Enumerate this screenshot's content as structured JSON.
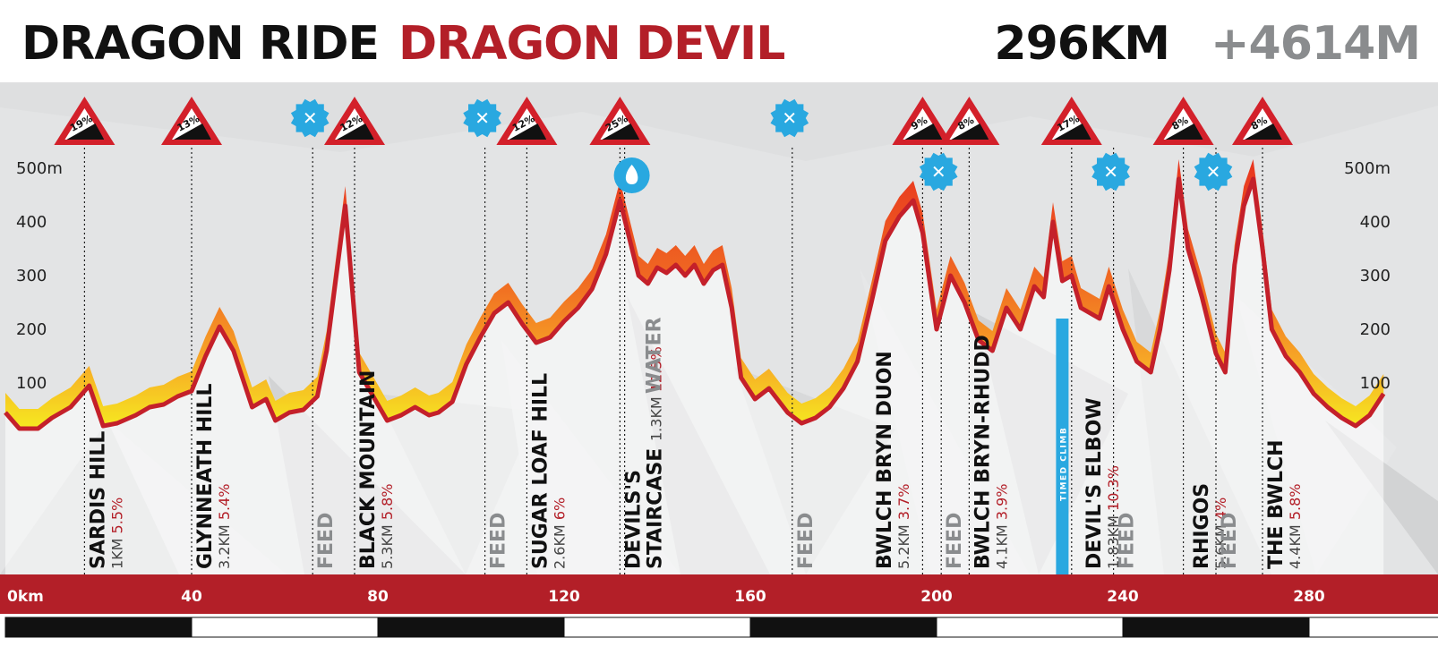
{
  "header": {
    "title_part1": "DRAGON RIDE",
    "title_part2": "DRAGON DEVIL",
    "distance": "296KM",
    "elevation_gain": "+4614M"
  },
  "colors": {
    "brand_red": "#b31f28",
    "profile_line": "#c4202a",
    "fill_gradient": [
      "#f6ea20",
      "#f7a826",
      "#f06a22",
      "#e8341f"
    ],
    "feed_blue": "#29a8e0",
    "timed_climb_blue": "#29a8e0",
    "gradient_sign_border": "#d3202a",
    "grey_text": "#8a8c8e"
  },
  "chart_data": {
    "type": "area",
    "title": "DRAGON RIDE DRAGON DEVIL",
    "xlabel": "km",
    "ylabel": "m",
    "xlim": [
      0,
      300
    ],
    "ylim": [
      0,
      550
    ],
    "x_ticks": [
      "0km",
      "40",
      "80",
      "120",
      "160",
      "200",
      "240",
      "280"
    ],
    "y_ticks_left": [
      "500m",
      "400",
      "300",
      "200",
      "100"
    ],
    "y_ticks_right": [
      "500m",
      "400",
      "300",
      "200",
      "100"
    ],
    "profile": {
      "x": [
        0,
        3,
        7,
        10,
        14,
        18,
        21,
        24,
        28,
        31,
        34,
        37,
        40,
        43,
        46,
        49,
        53,
        56,
        58,
        61,
        64,
        67,
        69,
        73,
        76,
        79,
        82,
        85,
        88,
        91,
        93,
        96,
        99,
        102,
        105,
        108,
        111,
        114,
        117,
        120,
        123,
        126,
        129,
        132,
        134,
        136,
        138,
        140,
        142,
        144,
        146,
        148,
        150,
        152,
        154,
        156,
        158,
        161,
        164,
        168,
        171,
        174,
        177,
        180,
        183,
        186,
        189,
        192,
        195,
        197,
        200,
        203,
        206,
        209,
        212,
        215,
        218,
        221,
        223,
        225,
        227,
        229,
        231,
        233,
        235,
        237,
        240,
        243,
        246,
        248,
        250,
        252,
        254,
        257,
        260,
        262,
        264,
        266,
        268,
        270,
        272,
        275,
        278,
        281,
        284,
        287,
        290,
        293,
        296
      ],
      "elevation": [
        45,
        15,
        15,
        35,
        55,
        95,
        20,
        25,
        40,
        55,
        60,
        75,
        85,
        150,
        205,
        160,
        55,
        70,
        30,
        45,
        50,
        75,
        160,
        430,
        120,
        75,
        30,
        40,
        55,
        40,
        45,
        65,
        135,
        185,
        230,
        250,
        210,
        175,
        185,
        215,
        240,
        275,
        340,
        440,
        370,
        300,
        285,
        315,
        305,
        320,
        300,
        320,
        285,
        310,
        320,
        240,
        110,
        70,
        90,
        45,
        25,
        35,
        55,
        90,
        140,
        250,
        365,
        410,
        440,
        380,
        200,
        300,
        250,
        180,
        160,
        240,
        200,
        280,
        260,
        400,
        290,
        300,
        240,
        230,
        220,
        280,
        200,
        140,
        120,
        200,
        310,
        480,
        350,
        260,
        155,
        120,
        320,
        430,
        480,
        350,
        200,
        150,
        120,
        80,
        55,
        35,
        20,
        40,
        80
      ]
    },
    "gradient_markers": [
      {
        "x": 17,
        "grade": "19%"
      },
      {
        "x": 40,
        "grade": "13%"
      },
      {
        "x": 75,
        "grade": "12%"
      },
      {
        "x": 112,
        "grade": "12%"
      },
      {
        "x": 132,
        "grade": "25%"
      },
      {
        "x": 197,
        "grade": "9%"
      },
      {
        "x": 207,
        "grade": "8%"
      },
      {
        "x": 229,
        "grade": "17%"
      },
      {
        "x": 253,
        "grade": "8%"
      },
      {
        "x": 270,
        "grade": "8%"
      }
    ],
    "feed_markers": [
      66,
      103,
      169,
      201,
      238,
      260
    ],
    "water_markers": [
      133
    ],
    "climbs": [
      {
        "x": 17,
        "name": "SARDIS HILL",
        "length": "1KM",
        "grade": "5.5%"
      },
      {
        "x": 40,
        "name": "GLYNNEATH HILL",
        "length": "3.2KM",
        "grade": "5.4%"
      },
      {
        "x": 75,
        "name": "BLACK MOUNTAIN",
        "length": "5.3KM",
        "grade": "5.8%"
      },
      {
        "x": 112,
        "name": "SUGAR LOAF HILL",
        "length": "2.6KM",
        "grade": "6%"
      },
      {
        "x": 132,
        "name": "DEVILS'S",
        "name2": "STAIRCASE",
        "length": "1.3KM",
        "grade": "12.5%"
      },
      {
        "x": 186,
        "name": "BWLCH BRYN DUON",
        "length": "5.2KM",
        "grade": "3.7%"
      },
      {
        "x": 207,
        "name": "BWLCH BRYN-RHUDD",
        "length": "4.1KM",
        "grade": "3.9%"
      },
      {
        "x": 231,
        "name": "DEVIL'S ELBOW",
        "length": "1.83KM",
        "grade": "10.3%"
      },
      {
        "x": 254,
        "name": "RHIGOS",
        "length": "5.6KM",
        "grade": "4%"
      },
      {
        "x": 270,
        "name": "THE BWLCH",
        "length": "4.4KM",
        "grade": "5.8%"
      }
    ],
    "feed_label": "FEED",
    "water_label": "WATER",
    "timed_climb": {
      "x": 227,
      "label": "TIMED CLIMB"
    }
  }
}
